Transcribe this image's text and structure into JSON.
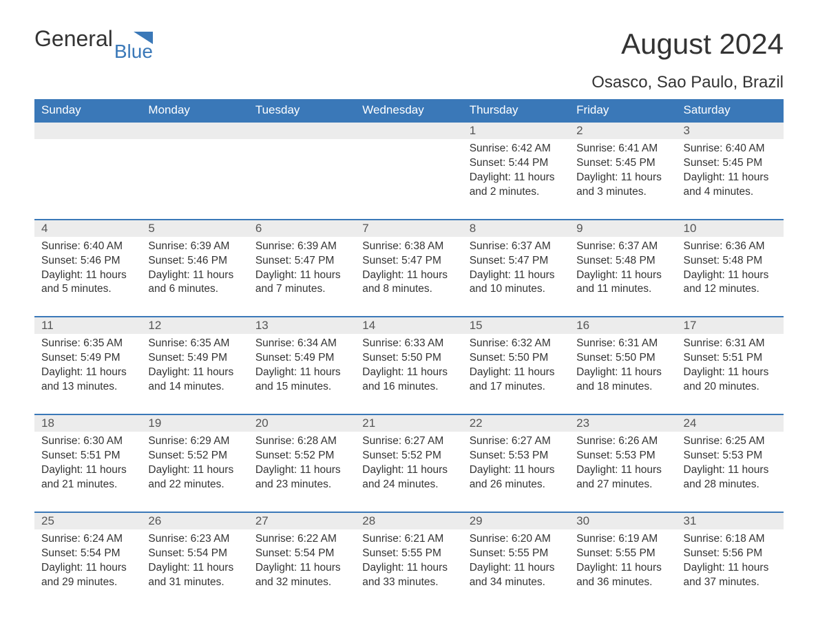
{
  "logo": {
    "text1": "General",
    "text2": "Blue",
    "shape_color": "#3a78b8"
  },
  "title": "August 2024",
  "location": "Osasco, Sao Paulo, Brazil",
  "colors": {
    "header_bg": "#3a78b8",
    "header_text": "#ffffff",
    "daynum_bg": "#ececec",
    "text": "#333333",
    "row_border": "#3a78b8",
    "background": "#ffffff"
  },
  "typography": {
    "title_fontsize": 42,
    "location_fontsize": 24,
    "dayhead_fontsize": 17,
    "daynum_fontsize": 17,
    "body_fontsize": 15.5,
    "font_family": "Arial"
  },
  "day_headers": [
    "Sunday",
    "Monday",
    "Tuesday",
    "Wednesday",
    "Thursday",
    "Friday",
    "Saturday"
  ],
  "weeks": [
    [
      {
        "empty": true
      },
      {
        "empty": true
      },
      {
        "empty": true
      },
      {
        "empty": true
      },
      {
        "n": "1",
        "sunrise": "6:42 AM",
        "sunset": "5:44 PM",
        "daylight": "11 hours and 2 minutes."
      },
      {
        "n": "2",
        "sunrise": "6:41 AM",
        "sunset": "5:45 PM",
        "daylight": "11 hours and 3 minutes."
      },
      {
        "n": "3",
        "sunrise": "6:40 AM",
        "sunset": "5:45 PM",
        "daylight": "11 hours and 4 minutes."
      }
    ],
    [
      {
        "n": "4",
        "sunrise": "6:40 AM",
        "sunset": "5:46 PM",
        "daylight": "11 hours and 5 minutes."
      },
      {
        "n": "5",
        "sunrise": "6:39 AM",
        "sunset": "5:46 PM",
        "daylight": "11 hours and 6 minutes."
      },
      {
        "n": "6",
        "sunrise": "6:39 AM",
        "sunset": "5:47 PM",
        "daylight": "11 hours and 7 minutes."
      },
      {
        "n": "7",
        "sunrise": "6:38 AM",
        "sunset": "5:47 PM",
        "daylight": "11 hours and 8 minutes."
      },
      {
        "n": "8",
        "sunrise": "6:37 AM",
        "sunset": "5:47 PM",
        "daylight": "11 hours and 10 minutes."
      },
      {
        "n": "9",
        "sunrise": "6:37 AM",
        "sunset": "5:48 PM",
        "daylight": "11 hours and 11 minutes."
      },
      {
        "n": "10",
        "sunrise": "6:36 AM",
        "sunset": "5:48 PM",
        "daylight": "11 hours and 12 minutes."
      }
    ],
    [
      {
        "n": "11",
        "sunrise": "6:35 AM",
        "sunset": "5:49 PM",
        "daylight": "11 hours and 13 minutes."
      },
      {
        "n": "12",
        "sunrise": "6:35 AM",
        "sunset": "5:49 PM",
        "daylight": "11 hours and 14 minutes."
      },
      {
        "n": "13",
        "sunrise": "6:34 AM",
        "sunset": "5:49 PM",
        "daylight": "11 hours and 15 minutes."
      },
      {
        "n": "14",
        "sunrise": "6:33 AM",
        "sunset": "5:50 PM",
        "daylight": "11 hours and 16 minutes."
      },
      {
        "n": "15",
        "sunrise": "6:32 AM",
        "sunset": "5:50 PM",
        "daylight": "11 hours and 17 minutes."
      },
      {
        "n": "16",
        "sunrise": "6:31 AM",
        "sunset": "5:50 PM",
        "daylight": "11 hours and 18 minutes."
      },
      {
        "n": "17",
        "sunrise": "6:31 AM",
        "sunset": "5:51 PM",
        "daylight": "11 hours and 20 minutes."
      }
    ],
    [
      {
        "n": "18",
        "sunrise": "6:30 AM",
        "sunset": "5:51 PM",
        "daylight": "11 hours and 21 minutes."
      },
      {
        "n": "19",
        "sunrise": "6:29 AM",
        "sunset": "5:52 PM",
        "daylight": "11 hours and 22 minutes."
      },
      {
        "n": "20",
        "sunrise": "6:28 AM",
        "sunset": "5:52 PM",
        "daylight": "11 hours and 23 minutes."
      },
      {
        "n": "21",
        "sunrise": "6:27 AM",
        "sunset": "5:52 PM",
        "daylight": "11 hours and 24 minutes."
      },
      {
        "n": "22",
        "sunrise": "6:27 AM",
        "sunset": "5:53 PM",
        "daylight": "11 hours and 26 minutes."
      },
      {
        "n": "23",
        "sunrise": "6:26 AM",
        "sunset": "5:53 PM",
        "daylight": "11 hours and 27 minutes."
      },
      {
        "n": "24",
        "sunrise": "6:25 AM",
        "sunset": "5:53 PM",
        "daylight": "11 hours and 28 minutes."
      }
    ],
    [
      {
        "n": "25",
        "sunrise": "6:24 AM",
        "sunset": "5:54 PM",
        "daylight": "11 hours and 29 minutes."
      },
      {
        "n": "26",
        "sunrise": "6:23 AM",
        "sunset": "5:54 PM",
        "daylight": "11 hours and 31 minutes."
      },
      {
        "n": "27",
        "sunrise": "6:22 AM",
        "sunset": "5:54 PM",
        "daylight": "11 hours and 32 minutes."
      },
      {
        "n": "28",
        "sunrise": "6:21 AM",
        "sunset": "5:55 PM",
        "daylight": "11 hours and 33 minutes."
      },
      {
        "n": "29",
        "sunrise": "6:20 AM",
        "sunset": "5:55 PM",
        "daylight": "11 hours and 34 minutes."
      },
      {
        "n": "30",
        "sunrise": "6:19 AM",
        "sunset": "5:55 PM",
        "daylight": "11 hours and 36 minutes."
      },
      {
        "n": "31",
        "sunrise": "6:18 AM",
        "sunset": "5:56 PM",
        "daylight": "11 hours and 37 minutes."
      }
    ]
  ],
  "labels": {
    "sunrise": "Sunrise: ",
    "sunset": "Sunset: ",
    "daylight": "Daylight: "
  }
}
